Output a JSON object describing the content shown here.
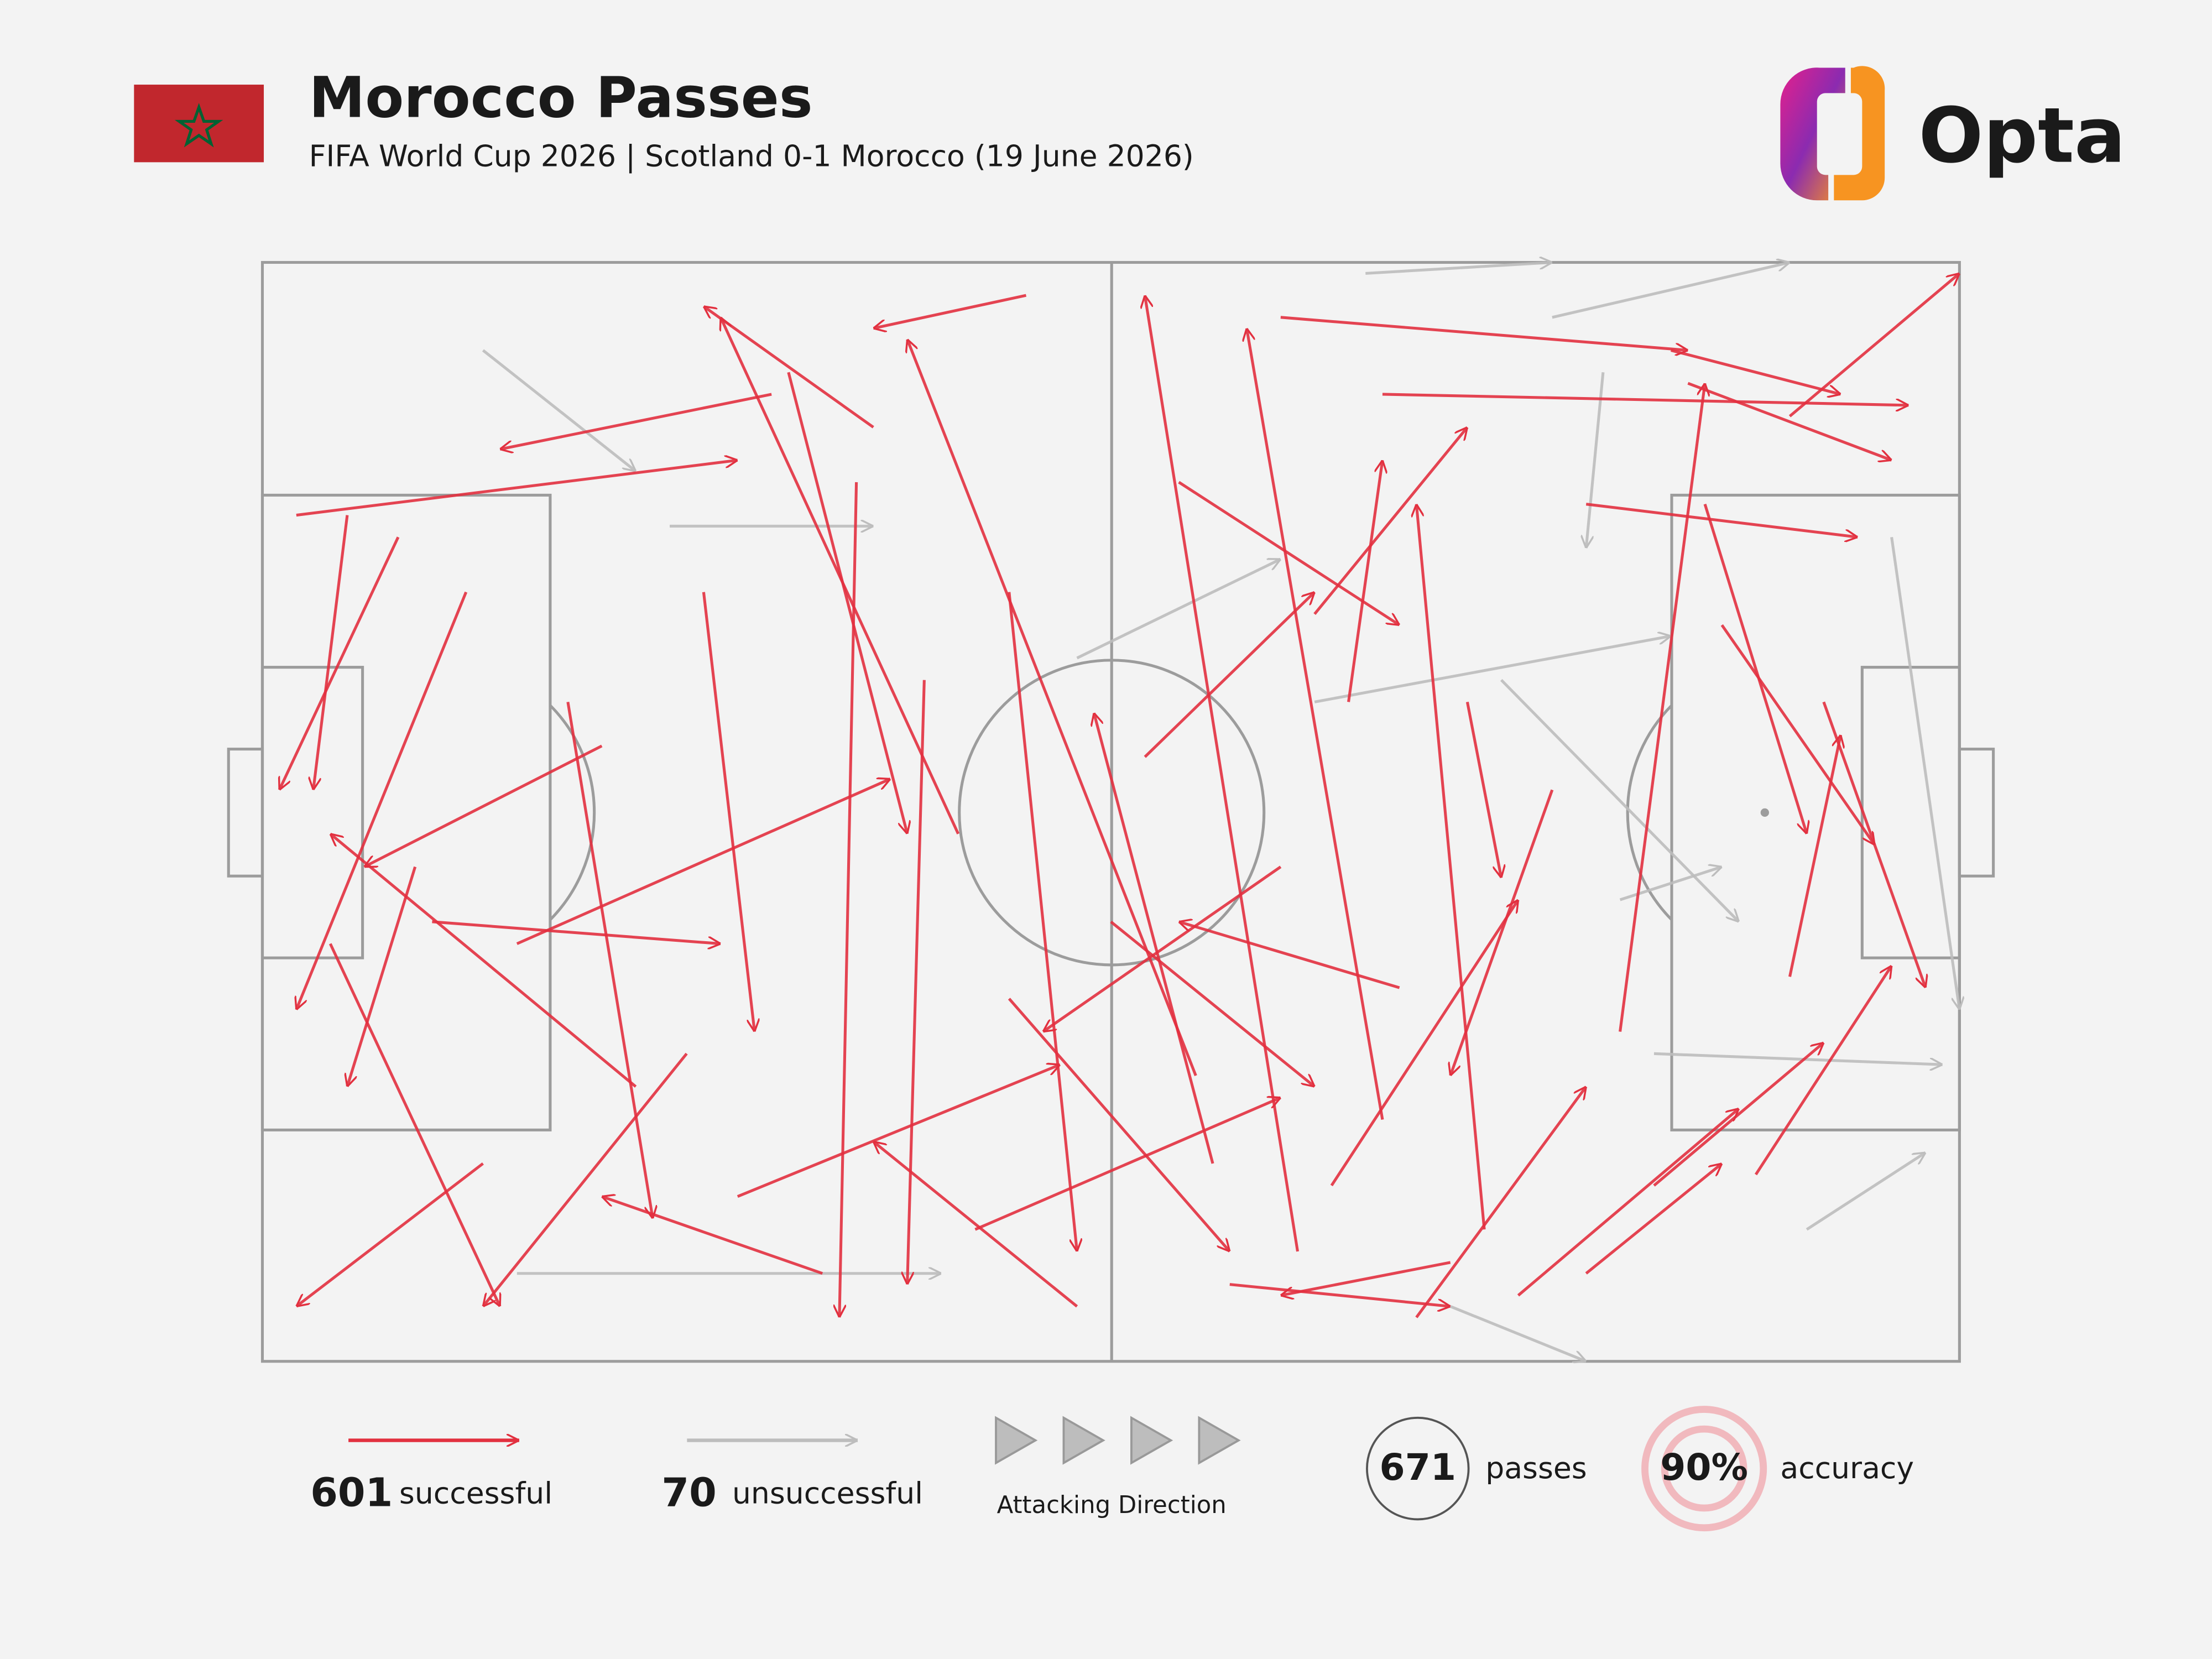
{
  "header": {
    "title": "Morocco Passes",
    "subtitle": "FIFA World Cup 2026 | Scotland 0-1 Morocco (19 June 2026)",
    "brand": "Opta"
  },
  "legend": {
    "successful": {
      "count": 601,
      "label": "successful"
    },
    "unsuccessful": {
      "count": 70,
      "label": "unsuccessful"
    },
    "direction": "Attacking Direction"
  },
  "stats": {
    "passes": {
      "count": 671,
      "label": "passes"
    },
    "accuracy": {
      "value": {
        "value": 90,
        "label": "90%"
      },
      "label": "accuracy"
    }
  },
  "passes": {
    "successful": [
      [
        2,
        23,
        28,
        18
      ],
      [
        5,
        23,
        3,
        48
      ],
      [
        8,
        25,
        1,
        48
      ],
      [
        13,
        82,
        2,
        95
      ],
      [
        25,
        72,
        13,
        95
      ],
      [
        36,
        15,
        26,
        4
      ],
      [
        41,
        52,
        27,
        5
      ],
      [
        48,
        95,
        36,
        80
      ],
      [
        55,
        74,
        38,
        7
      ],
      [
        56,
        82,
        49,
        41
      ],
      [
        61,
        90,
        52,
        3
      ],
      [
        66,
        78,
        58,
        6
      ],
      [
        72,
        88,
        68,
        22
      ],
      [
        78,
        92,
        86,
        82
      ],
      [
        90,
        65,
        93,
        43
      ],
      [
        85,
        22,
        91,
        52
      ],
      [
        80,
        70,
        85,
        11
      ],
      [
        84,
        11,
        96,
        18
      ],
      [
        90,
        14,
        100,
        1
      ],
      [
        83,
        8,
        93,
        12
      ],
      [
        66,
        12,
        97,
        13
      ],
      [
        60,
        5,
        84,
        8
      ],
      [
        30,
        12,
        14,
        17
      ],
      [
        45,
        3,
        36,
        6
      ],
      [
        20,
        44,
        6,
        55
      ],
      [
        9,
        55,
        5,
        75
      ],
      [
        4,
        62,
        14,
        95
      ],
      [
        15,
        62,
        37,
        47
      ],
      [
        22,
        75,
        4,
        52
      ],
      [
        28,
        85,
        47,
        73
      ],
      [
        33,
        92,
        20,
        85
      ],
      [
        42,
        88,
        60,
        76
      ],
      [
        50,
        60,
        62,
        75
      ],
      [
        63,
        84,
        74,
        58
      ],
      [
        68,
        96,
        78,
        75
      ],
      [
        74,
        94,
        87,
        77
      ],
      [
        82,
        84,
        92,
        71
      ],
      [
        88,
        83,
        96,
        64
      ],
      [
        76,
        48,
        70,
        74
      ],
      [
        71,
        40,
        73,
        56
      ],
      [
        62,
        32,
        71,
        15
      ],
      [
        54,
        20,
        67,
        33
      ],
      [
        44,
        30,
        48,
        90
      ],
      [
        39,
        38,
        38,
        93
      ],
      [
        35,
        20,
        34,
        96
      ],
      [
        31,
        10,
        38,
        52
      ],
      [
        26,
        30,
        29,
        70
      ],
      [
        18,
        40,
        23,
        87
      ],
      [
        10,
        60,
        27,
        62
      ],
      [
        12,
        30,
        2,
        68
      ],
      [
        60,
        55,
        46,
        70
      ],
      [
        67,
        66,
        54,
        60
      ],
      [
        78,
        22,
        94,
        25
      ],
      [
        92,
        40,
        98,
        66
      ],
      [
        86,
        33,
        95,
        53
      ],
      [
        70,
        91,
        60,
        94
      ],
      [
        57,
        93,
        70,
        95
      ],
      [
        44,
        67,
        57,
        90
      ],
      [
        52,
        45,
        62,
        30
      ],
      [
        64,
        40,
        66,
        18
      ]
    ],
    "unsuccessful": [
      [
        13,
        8,
        22,
        19
      ],
      [
        65,
        1,
        76,
        0
      ],
      [
        76,
        5,
        90,
        0
      ],
      [
        79,
        10,
        78,
        26
      ],
      [
        96,
        25,
        100,
        68
      ],
      [
        73,
        38,
        87,
        60
      ],
      [
        24,
        24,
        36,
        24
      ],
      [
        91,
        88,
        98,
        81
      ],
      [
        48,
        36,
        60,
        27
      ],
      [
        70,
        95,
        78,
        100
      ],
      [
        15,
        92,
        40,
        92
      ],
      [
        82,
        72,
        99,
        73
      ],
      [
        62,
        40,
        83,
        34
      ],
      [
        80,
        58,
        86,
        55
      ]
    ]
  }
}
